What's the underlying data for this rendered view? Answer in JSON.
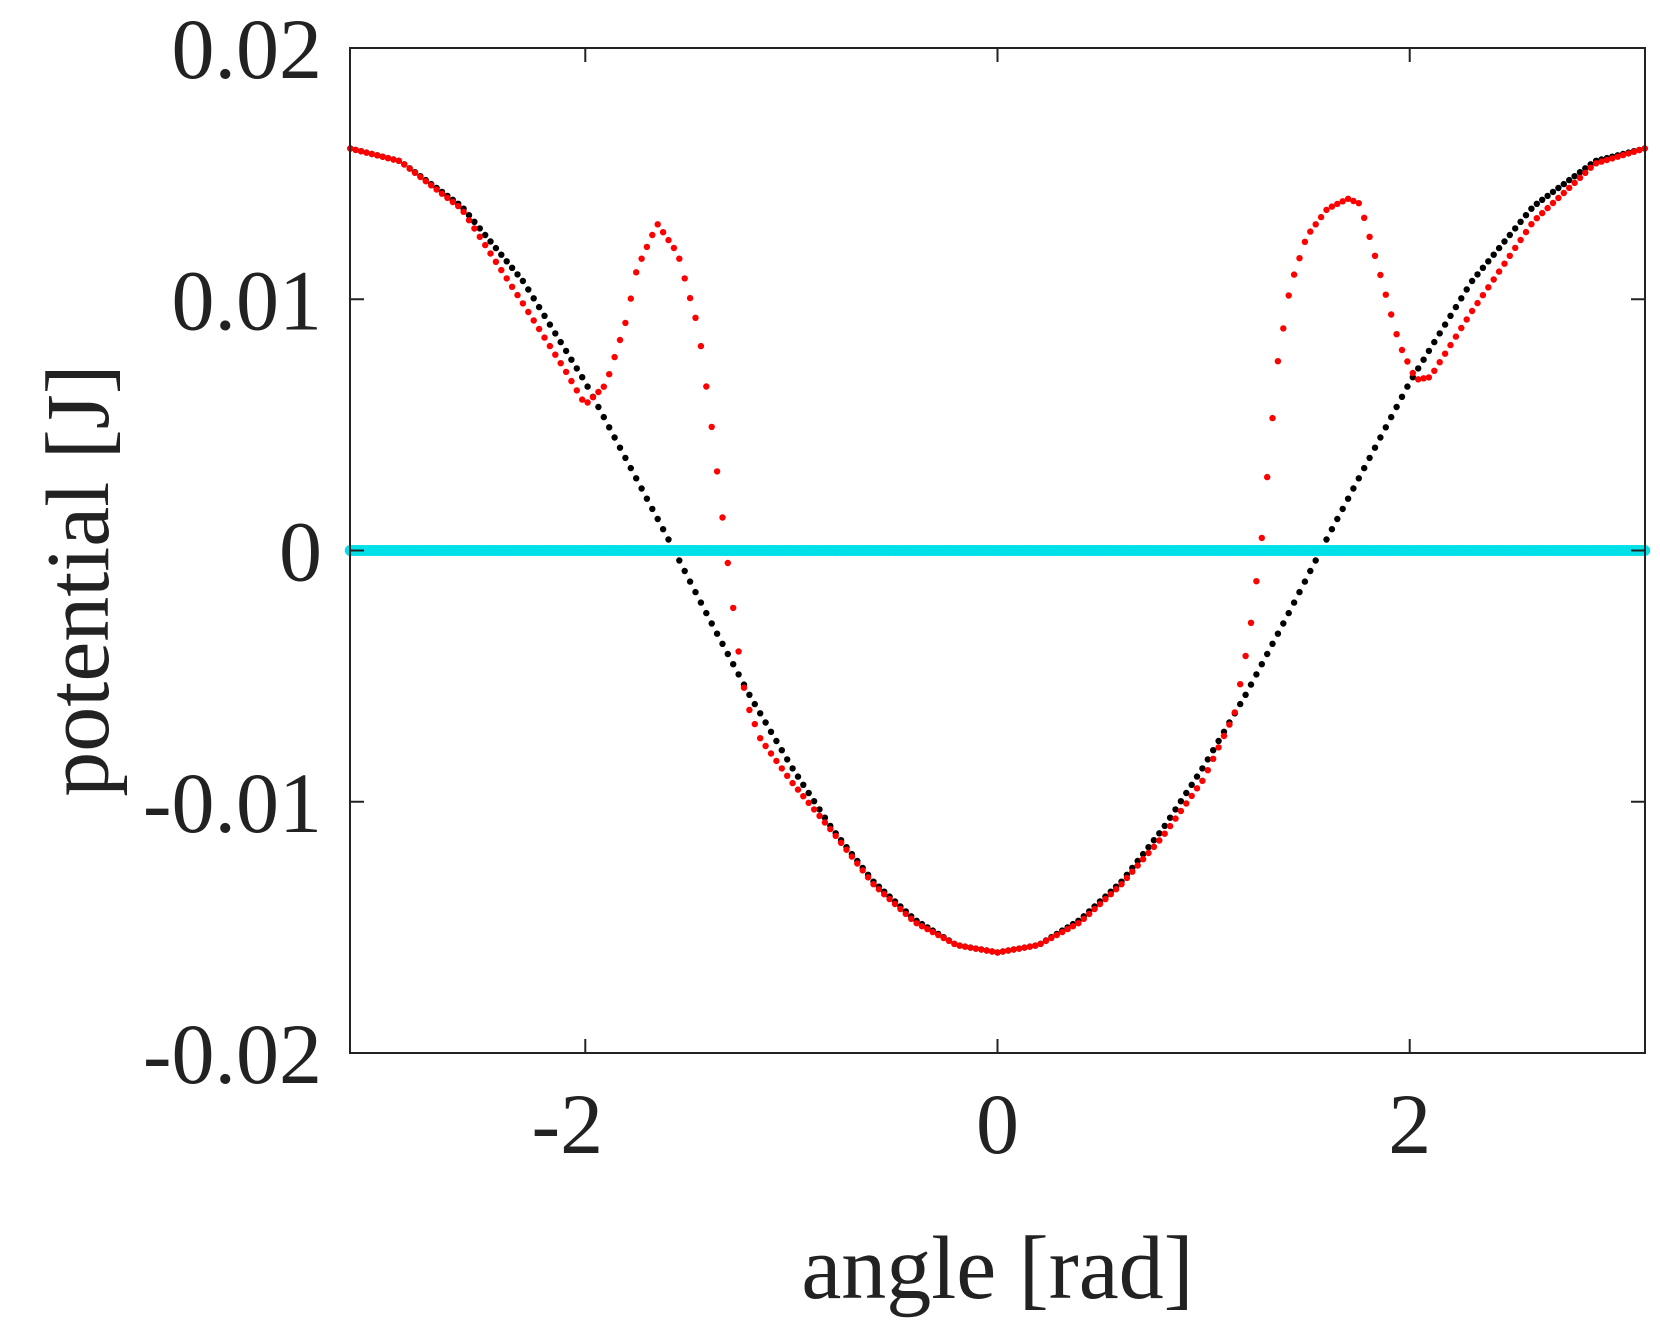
{
  "chart_data": {
    "type": "scatter",
    "title": "",
    "xlabel": "angle [rad]",
    "ylabel": "potential [J]",
    "xlim": [
      -3.1416,
      3.1416
    ],
    "ylim": [
      -0.02,
      0.02
    ],
    "grid": false,
    "legend": "none",
    "x_ticks": [
      -2,
      0,
      2
    ],
    "x_tick_labels": [
      "-2",
      "0",
      "2"
    ],
    "y_ticks": [
      0.02,
      0.01,
      0,
      -0.01,
      -0.02
    ],
    "y_tick_labels": [
      "0.02",
      "0.01",
      "0",
      "-0.01",
      "-0.02"
    ],
    "series": [
      {
        "color": "#000000",
        "marker": "dot",
        "x": [
          -3.14,
          -2.9,
          -2.6,
          -2.3,
          -2.0,
          -1.8,
          -1.6,
          -1.4,
          -1.2,
          -1.0,
          -0.8,
          -0.6,
          -0.4,
          -0.2,
          0,
          0.2,
          0.4,
          0.6,
          0.8,
          1.0,
          1.2,
          1.4,
          1.6,
          1.8,
          2.0,
          2.3,
          2.6,
          2.9,
          3.14
        ],
        "y": [
          0.016,
          0.0155,
          0.0137,
          0.0107,
          0.0067,
          0.0036,
          0.0005,
          -0.0027,
          -0.0058,
          -0.0086,
          -0.0111,
          -0.0132,
          -0.0147,
          -0.0157,
          -0.016,
          -0.0157,
          -0.0147,
          -0.0132,
          -0.0111,
          -0.0086,
          -0.0058,
          -0.0027,
          0.0005,
          0.0036,
          0.0067,
          0.0107,
          0.0137,
          0.0155,
          0.016
        ]
      },
      {
        "color": "#ff0000",
        "marker": "dot",
        "x": [
          -3.14,
          -2.9,
          -2.6,
          -2.3,
          -2.1,
          -2.0,
          -1.9,
          -1.8,
          -1.75,
          -1.65,
          -1.55,
          -1.45,
          -1.38,
          -1.32,
          -1.26,
          -1.22,
          -1.15,
          -1.0,
          -0.8,
          -0.6,
          -0.4,
          -0.2,
          0,
          0.2,
          0.4,
          0.6,
          0.8,
          1.0,
          1.15,
          1.22,
          1.28,
          1.32,
          1.36,
          1.42,
          1.5,
          1.6,
          1.7,
          1.76,
          1.85,
          1.95,
          2.03,
          2.1,
          2.3,
          2.6,
          2.9,
          3.14
        ],
        "y": [
          0.016,
          0.0155,
          0.0136,
          0.0098,
          0.0072,
          0.0058,
          0.0066,
          0.0092,
          0.0112,
          0.013,
          0.0118,
          0.0088,
          0.0045,
          0.0003,
          -0.0038,
          -0.006,
          -0.0075,
          -0.0092,
          -0.0112,
          -0.0133,
          -0.0148,
          -0.0157,
          -0.016,
          -0.0157,
          -0.0148,
          -0.0133,
          -0.0114,
          -0.0091,
          -0.0065,
          -0.0035,
          0.0003,
          0.004,
          0.0075,
          0.0105,
          0.0125,
          0.0136,
          0.014,
          0.0138,
          0.0112,
          0.0082,
          0.0068,
          0.0069,
          0.0095,
          0.0131,
          0.0154,
          0.016
        ]
      },
      {
        "color": "#00e0e8",
        "marker": "dot",
        "x": [
          -3.14,
          3.14
        ],
        "y": [
          0,
          0
        ]
      }
    ]
  }
}
